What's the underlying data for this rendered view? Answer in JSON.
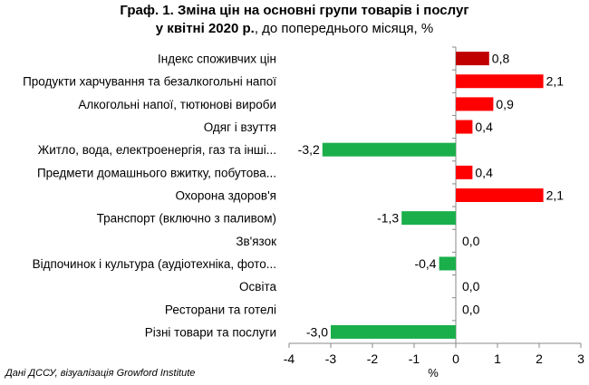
{
  "title": {
    "line1": "Граф. 1. Зміна цін на основні групи товарів і послуг",
    "line2_bold": "у квітні 2020 р.",
    "line2_rest": ", до попереднього місяця, %"
  },
  "source": "Дані ДССУ, візуалізація Growford Institute",
  "chart_data": {
    "type": "bar",
    "orientation": "horizontal",
    "categories": [
      "Індекс споживчих цін",
      "Продукти харчування та безалкогольні напої",
      "Алкогольні напої, тютюнові вироби",
      "Одяг і взуття",
      "Житло, вода, електроенергія, газ та інші...",
      "Предмети домашнього вжитку, побутова...",
      "Охорона здоров'я",
      "Транспорт (включно з паливом)",
      "Зв'язок",
      "Відпочинок і культура (аудіотехніка, фото...",
      "Освіта",
      "Ресторани та готелі",
      "Різні товари та послуги"
    ],
    "values": [
      0.8,
      2.1,
      0.9,
      0.4,
      -3.2,
      0.4,
      2.1,
      -1.3,
      0.0,
      -0.4,
      0.0,
      0.0,
      -3.0
    ],
    "value_labels": [
      "0,8",
      "2,1",
      "0,9",
      "0,4",
      "-3,2",
      "0,4",
      "2,1",
      "-1,3",
      "0,0",
      "-0,4",
      "0,0",
      "0,0",
      "-3,0"
    ],
    "xlim": [
      -4,
      3
    ],
    "x_ticks": [
      -4,
      -3,
      -2,
      -1,
      0,
      1,
      2,
      3
    ],
    "x_tick_labels": [
      "-4",
      "-3",
      "-2",
      "-1",
      "0",
      "1",
      "2",
      "3"
    ],
    "xlabel": "%",
    "grid": false,
    "colors": {
      "index": "#c00000",
      "positive": "#ff0000",
      "negative": "#1aaf4b"
    }
  }
}
